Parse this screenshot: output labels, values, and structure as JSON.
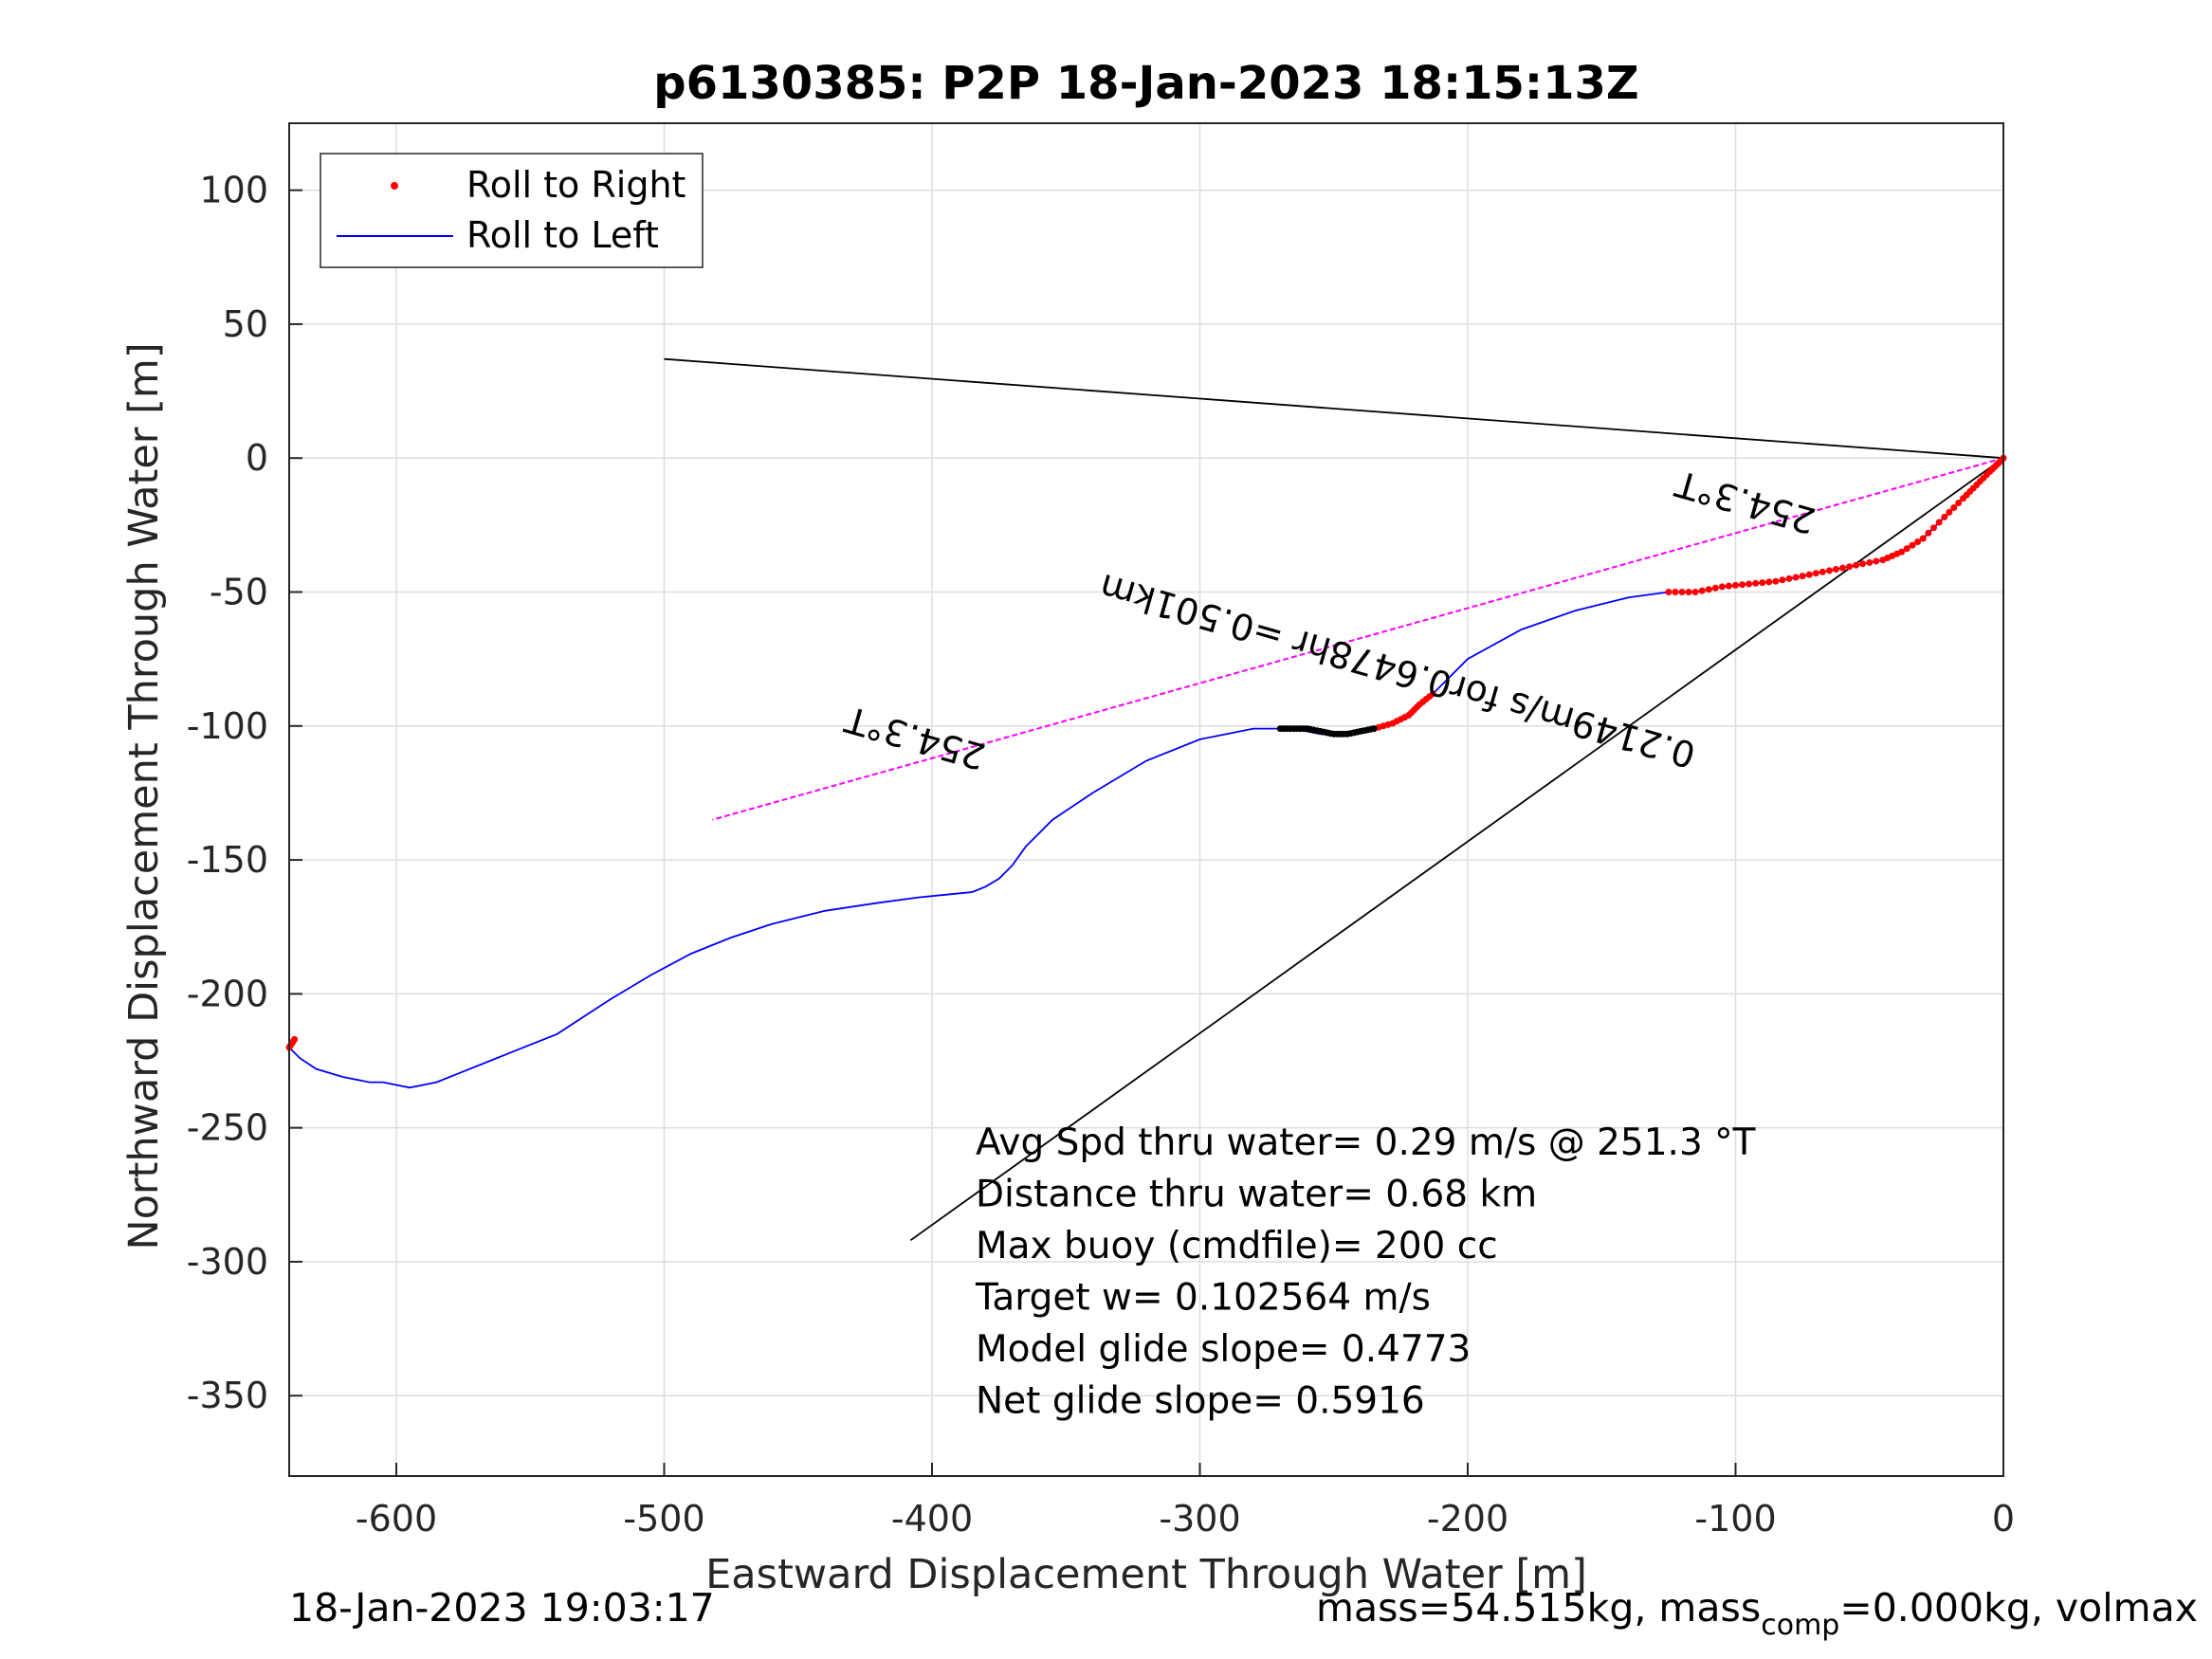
{
  "chart_data": {
    "type": "line",
    "title": "p6130385: P2P 18-Jan-2023 18:15:13Z",
    "xlabel": "Eastward Displacement Through Water [m]",
    "ylabel": "Northward Displacement Through Water [m]",
    "xlim": [
      -640,
      0
    ],
    "ylim": [
      -380,
      125
    ],
    "xticks": [
      -600,
      -500,
      -400,
      -300,
      -200,
      -100,
      0
    ],
    "yticks": [
      100,
      50,
      0,
      -50,
      -100,
      -150,
      -200,
      -250,
      -300,
      -350
    ],
    "grid": true,
    "legend": {
      "location": "top-left",
      "entries": [
        "Roll to Right",
        "Roll to Left"
      ]
    },
    "colors": {
      "roll_right": "#ff0000",
      "roll_left": "#0000ff",
      "reference": "#000000",
      "target": "#ff00ff",
      "grid": "#dddddd"
    },
    "series": [
      {
        "name": "Roll to Left",
        "style": "line",
        "color": "#0000ff",
        "x": [
          0,
          -5,
          -10,
          -15,
          -22,
          -30,
          -38,
          -45,
          -55,
          -65,
          -75,
          -85,
          -95,
          -105,
          -115,
          -125,
          -140,
          -160,
          -180,
          -200,
          -213,
          -222,
          -235,
          -245,
          -255,
          -265,
          -280,
          -300,
          -320,
          -340,
          -355,
          -365,
          -370,
          -375,
          -380,
          -385,
          -395,
          -405,
          -420,
          -440,
          -460,
          -475,
          -490,
          -505,
          -520,
          -540,
          -555,
          -565,
          -575,
          -585,
          -595,
          -605,
          -610,
          -620,
          -630,
          -636,
          -640
        ],
        "y": [
          0,
          -5,
          -10,
          -15,
          -22,
          -30,
          -35,
          -38,
          -40,
          -42,
          -44,
          -46,
          -47,
          -48,
          -50,
          -50,
          -52,
          -57,
          -64,
          -75,
          -88,
          -96,
          -101,
          -103,
          -103,
          -101,
          -101,
          -105,
          -113,
          -125,
          -135,
          -145,
          -152,
          -157,
          -160,
          -162,
          -163,
          -164,
          -166,
          -169,
          -174,
          -179,
          -185,
          -193,
          -202,
          -215,
          -221,
          -225,
          -229,
          -233,
          -235,
          -233,
          -233,
          -231,
          -228,
          -224,
          -220
        ]
      },
      {
        "name": "Roll to Right",
        "style": "dots",
        "color": "#ff0000",
        "segments": [
          {
            "x": [
              0,
              -2,
              -5,
              -10,
              -15,
              -22,
              -30,
              -38,
              -45,
              -55,
              -65,
              -75,
              -85,
              -95,
              -105,
              -115,
              -125
            ],
            "y": [
              0,
              -2,
              -5,
              -10,
              -15,
              -22,
              -30,
              -35,
              -38,
              -40,
              -42,
              -44,
              -46,
              -47,
              -48,
              -50,
              -50
            ]
          },
          {
            "x": [
              -213,
              -218,
              -222,
              -228,
              -235
            ],
            "y": [
              -88,
              -92,
              -96,
              -99,
              -101
            ]
          },
          {
            "x": [
              -638,
              -640
            ],
            "y": [
              -217,
              -220
            ]
          }
        ]
      },
      {
        "name": "",
        "style": "dots",
        "color": "#000000",
        "x": [
          -235,
          -240,
          -245,
          -250,
          -255,
          -260,
          -265,
          -270
        ],
        "y": [
          -101,
          -102,
          -103,
          -103,
          -102,
          -101,
          -101,
          -101
        ]
      },
      {
        "name": "",
        "style": "line",
        "color": "#000000",
        "x": [
          0,
          -500
        ],
        "y": [
          0,
          37
        ]
      },
      {
        "name": "",
        "style": "line",
        "color": "#000000",
        "x": [
          0,
          -408
        ],
        "y": [
          0,
          -292
        ]
      },
      {
        "name": "",
        "style": "line",
        "color": "#ff00ff",
        "x": [
          0,
          -482
        ],
        "y": [
          0,
          -135
        ]
      }
    ],
    "annotations": [
      {
        "text": "254.3°T",
        "x": -405,
        "y": -100,
        "rotation_deg": 196,
        "color": "#000000"
      },
      {
        "text": "0.2149m/s for0.6478hr =0.501km",
        "x": -225,
        "y": -75,
        "rotation_deg": 196,
        "color": "#000000"
      },
      {
        "text": "254.3°T",
        "x": -95,
        "y": -12,
        "rotation_deg": 196,
        "color": "#000000"
      }
    ],
    "text_block": [
      "Avg Spd thru water=  0.29 m/s @ 251.3 °T",
      "Distance thru water=  0.68 km",
      "Max buoy (cmdfile)= 200 cc",
      "Target w= 0.102564 m/s",
      "Model glide slope= 0.4773",
      "Net glide slope= 0.5916"
    ]
  },
  "footer": {
    "timestamp": "18-Jan-2023 19:03:17",
    "mass_prefix": "mass=54.515kg, mass",
    "mass_sub": "comp",
    "mass_suffix": "=0.000kg, volmax"
  }
}
